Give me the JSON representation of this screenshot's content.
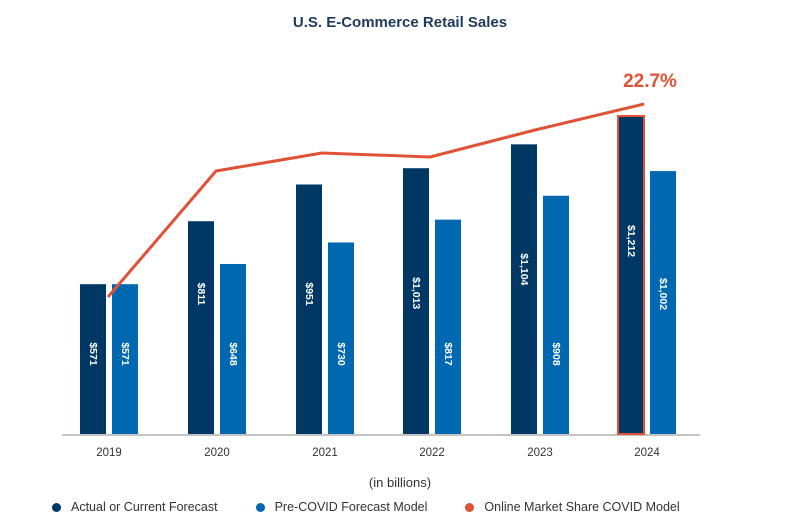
{
  "chart_data": {
    "type": "bar",
    "title": "U.S. E-Commerce Retail Sales",
    "xlabel": "(in billions)",
    "ylabel": "",
    "categories": [
      "2019",
      "2020",
      "2021",
      "2022",
      "2023",
      "2024"
    ],
    "series": [
      {
        "name": "Actual or Current Forecast",
        "color": "#003865",
        "values": [
          571,
          811,
          951,
          1013,
          1104,
          1212
        ],
        "labels": [
          "$571",
          "$811",
          "$951",
          "$1,013",
          "$1,104",
          "$1,212"
        ]
      },
      {
        "name": "Pre-COVID Forecast Model",
        "color": "#0067b1",
        "values": [
          571,
          648,
          730,
          817,
          908,
          1002
        ],
        "labels": [
          "$571",
          "$648",
          "$730",
          "$817",
          "$908",
          "$1,002"
        ]
      },
      {
        "name": "Online Market Share COVID Model",
        "color": "#e05236",
        "type": "line",
        "values": [
          15.3,
          19.8,
          20.5,
          20.3,
          21.5,
          22.7
        ],
        "value_note": "only final value (22.7%) labeled; others estimated",
        "end_label": "22.7%"
      }
    ],
    "highlight": {
      "category": "2024",
      "series": "Actual or Current Forecast",
      "outline_color": "#e05236"
    },
    "ylim": [
      0,
      1212
    ],
    "grid": false,
    "legend_position": "bottom"
  }
}
